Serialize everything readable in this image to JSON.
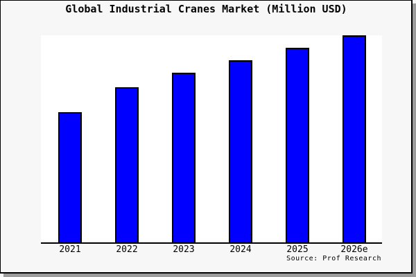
{
  "chart_data": {
    "type": "bar",
    "title": "Global Industrial Cranes Market (Million USD)",
    "categories": [
      "2021",
      "2022",
      "2023",
      "2024",
      "2025",
      "2026e"
    ],
    "values": [
      63,
      75,
      82,
      88,
      94,
      100
    ],
    "value_note": "No y-axis scale is shown in the image; values are relative bar heights indexed to 2026e = 100.",
    "xlabel": "",
    "ylabel": "",
    "ylim": [
      0,
      100
    ],
    "y_axis_ticks": [],
    "grid": false,
    "legend": false,
    "bar_color": "#0000ff",
    "bar_border_color": "#000000",
    "plot_background": "#ffffff"
  },
  "source_note": "Source: Prof Research",
  "colors": {
    "background": "#f7f7f7",
    "frame_border": "#000000",
    "shadow": "#9c9c9c",
    "axis": "#000000",
    "title_text": "#000000"
  }
}
